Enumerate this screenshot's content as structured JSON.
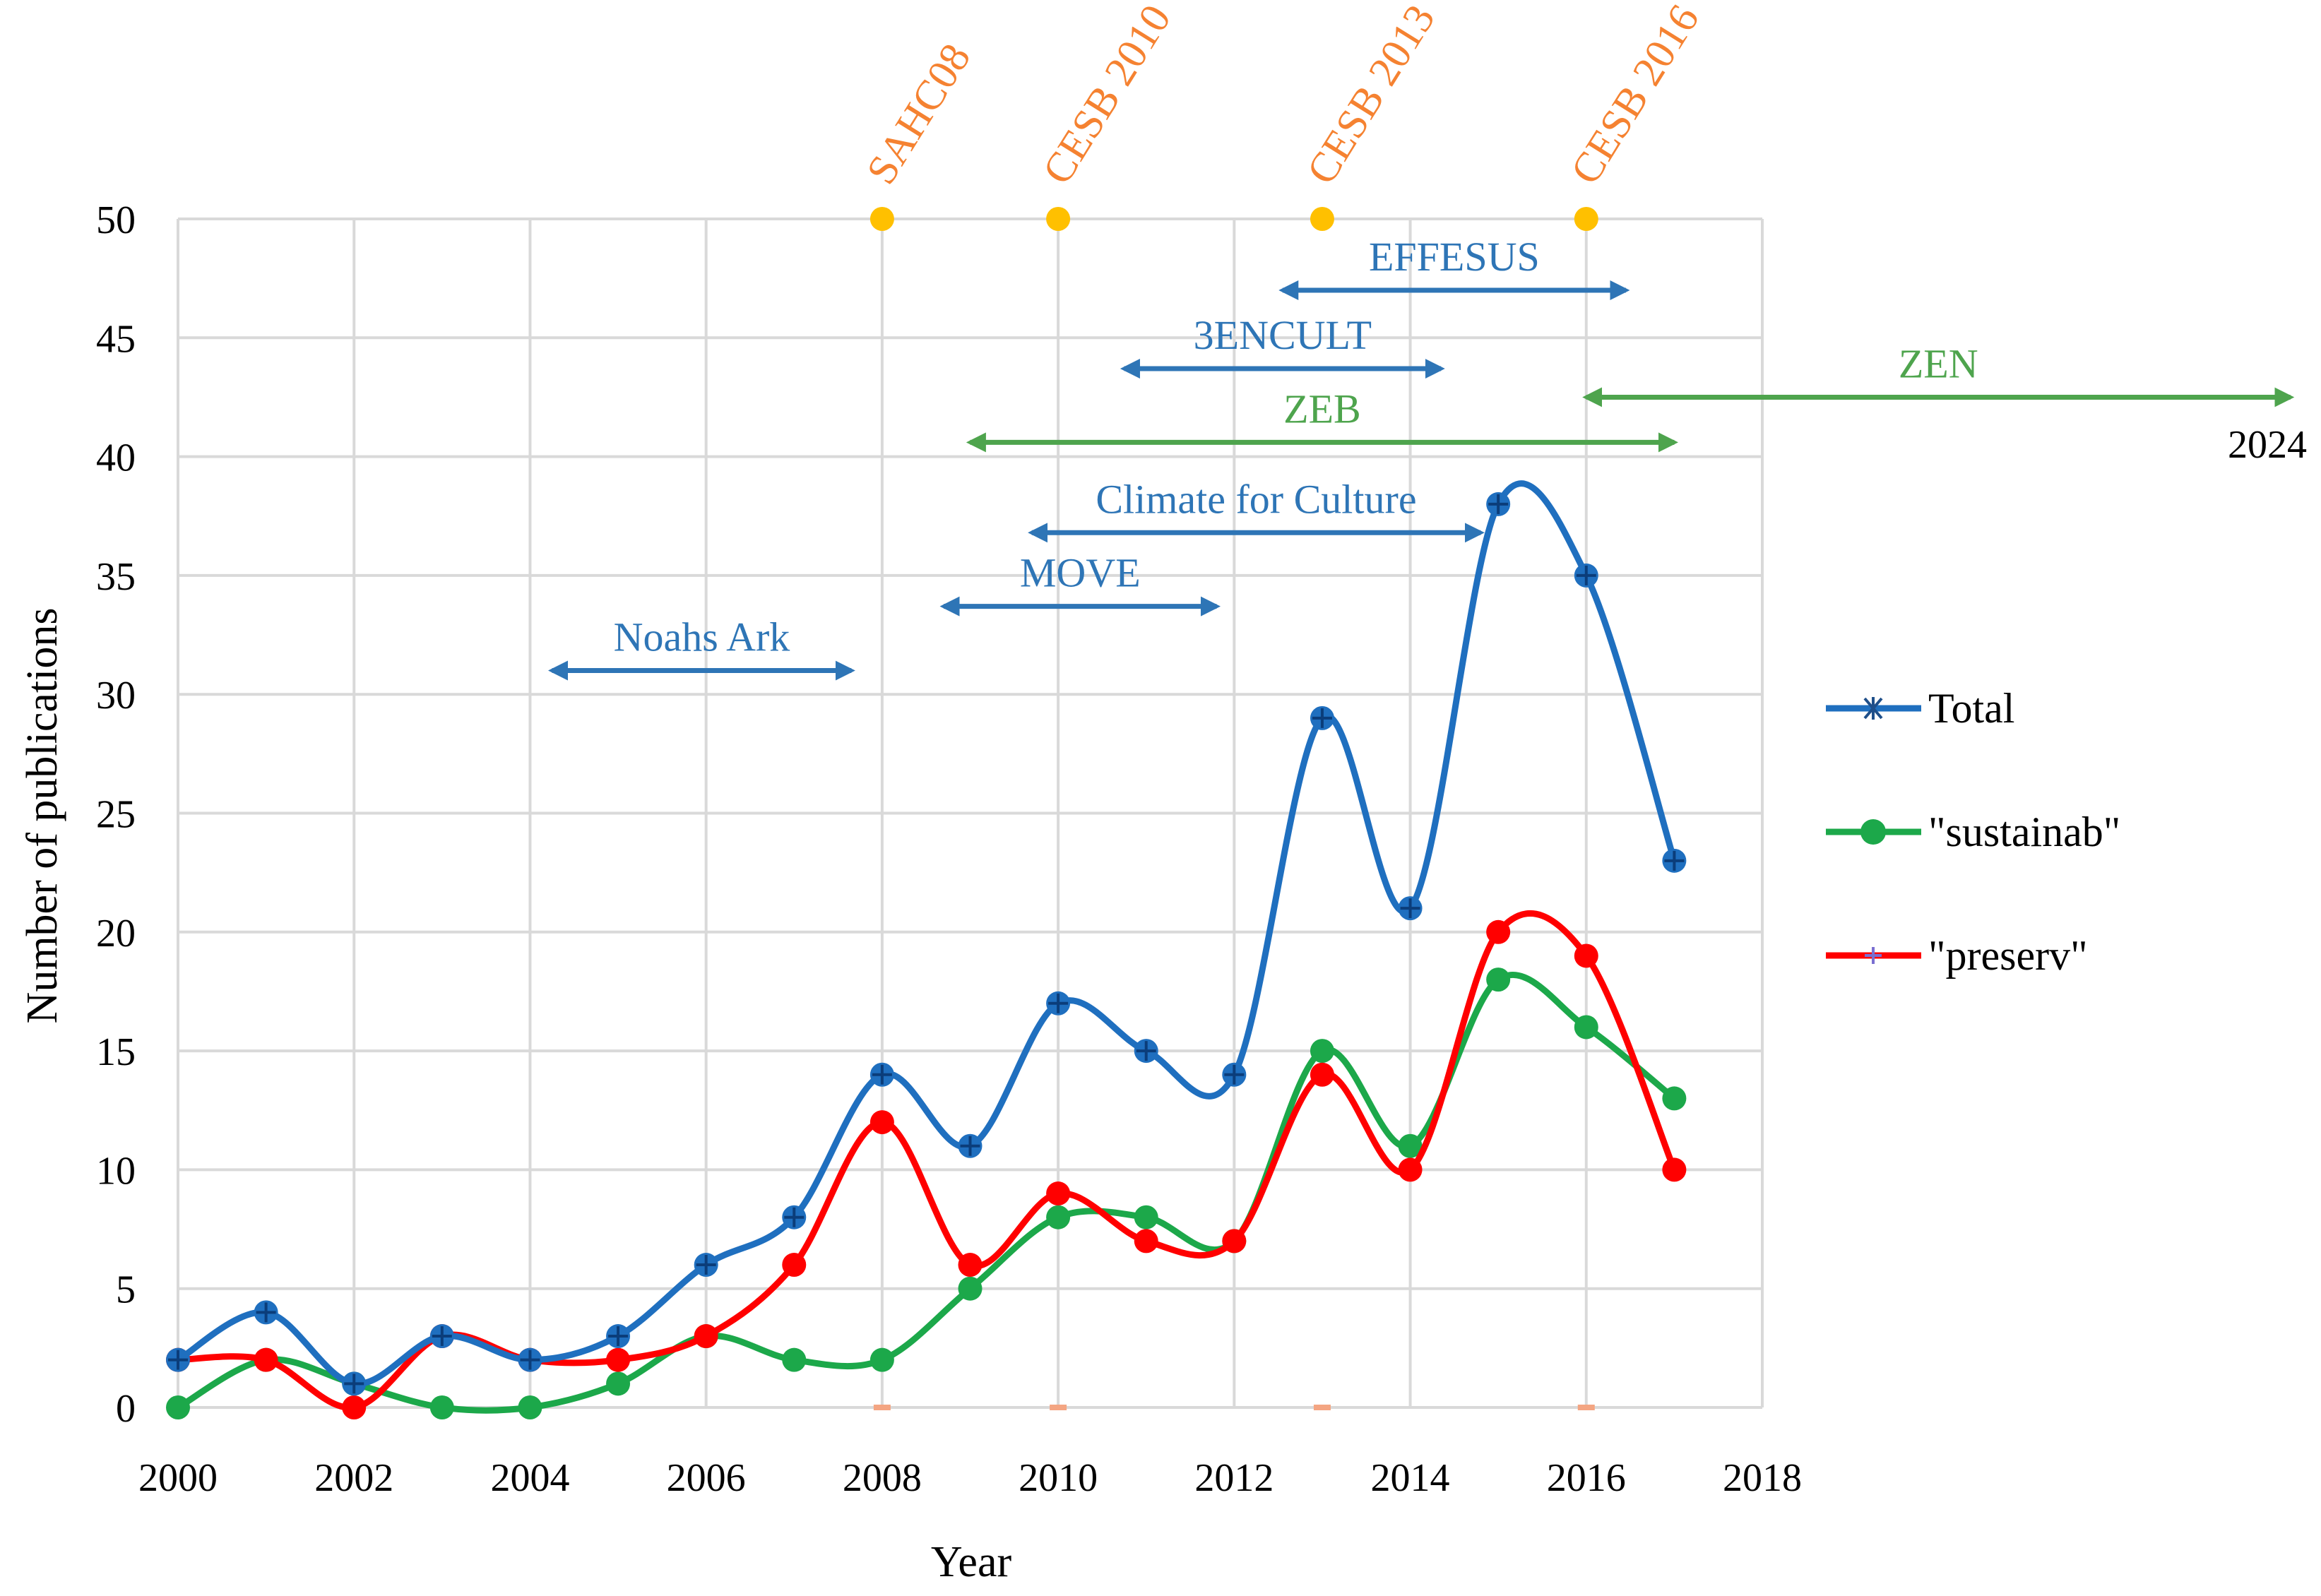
{
  "chart_data": {
    "type": "line",
    "title": "",
    "xlabel": "Year",
    "ylabel": "Number of publications",
    "xlim": [
      2000,
      2018
    ],
    "ylim": [
      0,
      50
    ],
    "x_ticks": [
      "2000",
      "2002",
      "2004",
      "2006",
      "2008",
      "2010",
      "2012",
      "2014",
      "2016",
      "2018"
    ],
    "y_ticks": [
      "0",
      "5",
      "10",
      "15",
      "20",
      "25",
      "30",
      "35",
      "40",
      "45",
      "50"
    ],
    "grid": true,
    "legend_position": "right",
    "x": [
      2000,
      2001,
      2002,
      2003,
      2004,
      2005,
      2006,
      2007,
      2008,
      2009,
      2010,
      2011,
      2012,
      2013,
      2014,
      2015,
      2016,
      2017
    ],
    "series": [
      {
        "name": "Total",
        "color": "#1f6fbf",
        "marker": "asterisk",
        "values": [
          2,
          4,
          1,
          3,
          2,
          3,
          6,
          8,
          14,
          11,
          17,
          15,
          14,
          29,
          21,
          38,
          35,
          23
        ]
      },
      {
        "name": "\"sustainab\"",
        "color": "#1ca84a",
        "marker": "circle",
        "values": [
          0,
          2,
          1,
          0,
          0,
          1,
          3,
          2,
          2,
          5,
          8,
          8,
          7,
          15,
          11,
          18,
          16,
          13
        ]
      },
      {
        "name": "\"preserv\"",
        "color": "#ff0000",
        "marker": "plus",
        "values": [
          2,
          2,
          0,
          3,
          2,
          2,
          3,
          6,
          12,
          6,
          9,
          7,
          7,
          14,
          10,
          20,
          19,
          10
        ]
      }
    ],
    "conferences": [
      {
        "label": "SAHC08",
        "year": 2008,
        "y": 50,
        "color": "#f58231",
        "marker_color": "#ffc000"
      },
      {
        "label": "CESB 2010",
        "year": 2010,
        "y": 50,
        "color": "#f58231",
        "marker_color": "#ffc000"
      },
      {
        "label": "CESB 2013",
        "year": 2013,
        "y": 50,
        "color": "#f58231",
        "marker_color": "#ffc000"
      },
      {
        "label": "CESB 2016",
        "year": 2016,
        "y": 50,
        "color": "#f58231",
        "marker_color": "#ffc000"
      }
    ],
    "projects": [
      {
        "label": "EFFESUS",
        "start": 2012.55,
        "end": 2016.45,
        "y": 47,
        "color": "#2e75b6"
      },
      {
        "label": "3ENCULT",
        "start": 2010.75,
        "end": 2014.35,
        "y": 43.7,
        "color": "#2e75b6"
      },
      {
        "label": "ZEN",
        "start": 2016,
        "end": 2024,
        "y": 42.5,
        "color": "#4ea44d"
      },
      {
        "label": "ZEB",
        "start": 2009,
        "end": 2017,
        "y": 40.6,
        "color": "#4ea44d"
      },
      {
        "label": "Climate for Culture",
        "start": 2009.7,
        "end": 2014.8,
        "y": 36.8,
        "color": "#2e75b6"
      },
      {
        "label": "MOVE",
        "start": 2008.7,
        "end": 2011.8,
        "y": 33.7,
        "color": "#2e75b6"
      },
      {
        "label": "Noahs Ark",
        "start": 2004.25,
        "end": 2007.65,
        "y": 31,
        "color": "#2e75b6"
      }
    ],
    "annotations": [
      "2024"
    ]
  }
}
